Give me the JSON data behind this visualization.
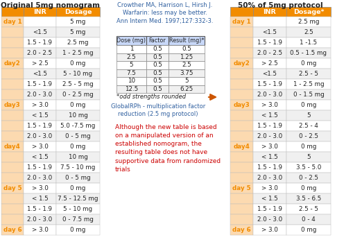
{
  "title_left": "Original 5mg nomogram",
  "title_right": "50% of 5mg protocol",
  "header_color": "#F28C00",
  "day_color": "#FCDAB0",
  "row_color_odd": "#F0F0F0",
  "row_color_even": "#FFFFFF",
  "orange_text": "#F28C00",
  "blue_text": "#3060A0",
  "red_text": "#CC0000",
  "dark_text": "#222222",
  "mid_table_header_bg": "#C8D8F8",
  "mid_table_border": "#555555",
  "left_table": {
    "rows": [
      [
        "day 1",
        "",
        "5 mg"
      ],
      [
        "",
        "<1.5",
        "5 mg"
      ],
      [
        "",
        "1.5 - 1.9",
        "2.5 mg"
      ],
      [
        "",
        "2.0 - 2.5",
        "1 - 2.5 mg"
      ],
      [
        "day2",
        "> 2.5",
        "0 mg"
      ],
      [
        "",
        "<1.5",
        "5 - 10 mg"
      ],
      [
        "",
        "1.5 - 1.9",
        "2.5 - 5 mg"
      ],
      [
        "",
        "2.0 - 3.0",
        "0 - 2.5 mg"
      ],
      [
        "day3",
        "> 3.0",
        "0 mg"
      ],
      [
        "",
        "< 1.5",
        "10 mg"
      ],
      [
        "",
        "1.5 - 1.9",
        "5.0 -7.5 mg"
      ],
      [
        "",
        "2.0 - 3.0",
        "0 - 5 mg"
      ],
      [
        "day4",
        "> 3.0",
        "0 mg"
      ],
      [
        "",
        "< 1.5",
        "10 mg"
      ],
      [
        "",
        "1.5 - 1.9",
        "7.5 - 10 mg"
      ],
      [
        "",
        "2.0 - 3.0",
        "0 - 5 mg"
      ],
      [
        "day 5",
        "> 3.0",
        "0 mg"
      ],
      [
        "",
        "< 1.5",
        "7.5 - 12.5 mg"
      ],
      [
        "",
        "1.5 - 1.9",
        "5 - 10 mg"
      ],
      [
        "",
        "2.0 - 3.0",
        "0 - 7.5 mg"
      ],
      [
        "day 6",
        "> 3.0",
        "0 mg"
      ]
    ]
  },
  "right_table": {
    "rows": [
      [
        "day 1",
        "",
        "2.5 mg"
      ],
      [
        "",
        "<1.5",
        "2.5"
      ],
      [
        "",
        "1.5 - 1.9",
        "1 -1.5"
      ],
      [
        "",
        "2.0 - 2.5",
        "0.5 - 1.5 mg"
      ],
      [
        "day2",
        "> 2.5",
        "0 mg"
      ],
      [
        "",
        "<1.5",
        "2.5 - 5"
      ],
      [
        "",
        "1.5 - 1.9",
        "1 - 2.5 mg"
      ],
      [
        "",
        "2.0 - 3.0",
        "0 - 1.5 mg"
      ],
      [
        "day3",
        "> 3.0",
        "0 mg"
      ],
      [
        "",
        "< 1.5",
        "5"
      ],
      [
        "",
        "1.5 - 1.9",
        "2.5 - 4"
      ],
      [
        "",
        "2.0 - 3.0",
        "0 - 2.5"
      ],
      [
        "day4",
        "> 3.0",
        "0 mg"
      ],
      [
        "",
        "< 1.5",
        "5"
      ],
      [
        "",
        "1.5 - 1.9",
        "3.5 - 5.0"
      ],
      [
        "",
        "2.0 - 3.0",
        "0 - 2.5"
      ],
      [
        "day 5",
        "> 3.0",
        "0 mg"
      ],
      [
        "",
        "< 1.5",
        "3.5 - 6.5"
      ],
      [
        "",
        "1.5 - 1.9",
        "2.5 - 5"
      ],
      [
        "",
        "2.0 - 3.0",
        "0 - 4"
      ],
      [
        "day 6",
        "> 3.0",
        "0 mg"
      ]
    ]
  },
  "middle_table": {
    "headers": [
      "Dose (mg)",
      "Factor",
      "Result (mg)*"
    ],
    "rows": [
      [
        "1",
        "0.5",
        "0.5"
      ],
      [
        "2.5",
        "0.5",
        "1.25"
      ],
      [
        "5",
        "0.5",
        "2.5"
      ],
      [
        "7.5",
        "0.5",
        "3.75"
      ],
      [
        "10",
        "0.5",
        "5"
      ],
      [
        "12.5",
        "0.5",
        "6.25"
      ]
    ]
  },
  "reference_text": "Crowther MA, Harrison L, Hirsh J.\nWarfarin: less may be better.\nAnn Intern Med. 1997;127:332-3.",
  "footnote_text": "*odd strengths rounded",
  "globalrph_text": "GlobalRPh - multiplication factor\nreduction (2.5 mg protocol)",
  "warning_text": "Although the new table is based\non a manipulated version of an\nestablished nomogram, the\nresulting table does not have\nsupportive data from randomized\ntrials",
  "arrow_color": "#CC5500"
}
